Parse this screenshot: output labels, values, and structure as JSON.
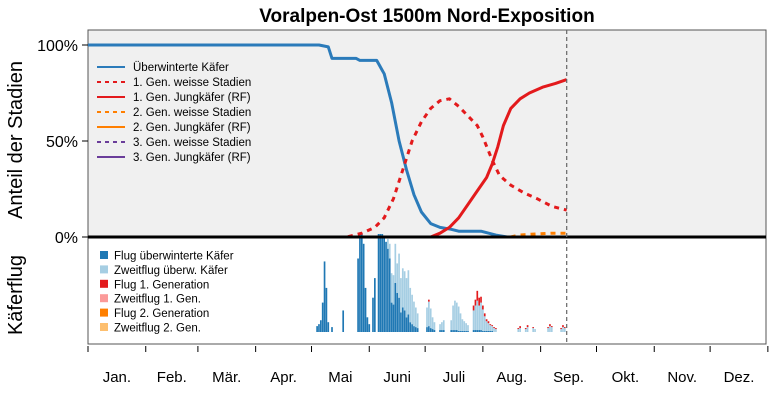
{
  "colors": {
    "panel_bg": "#f0f0f0",
    "overwintered": "#2b7bba",
    "gen1_white": "#e31a1c",
    "gen1_young": "#e31a1c",
    "gen2_white": "#ff7f00",
    "gen2_young": "#ff7f00",
    "gen3_white": "#6a3d9a",
    "gen3_young": "#6a3d9a",
    "flight_overwintered": "#1f78b4",
    "reflight_overwintered": "#a6cee3",
    "flight_gen1": "#e31a1c",
    "reflight_gen1": "#fb9a99",
    "flight_gen2": "#ff7f00",
    "reflight_gen2": "#fdbf6f"
  },
  "chart_data": {
    "type": "line",
    "title": "Voralpen-Ost 1500m Nord-Exposition",
    "ylabel_top": "Anteil der Stadien",
    "ylabel_bottom": "Käferflug",
    "yticks": [
      "100%",
      "50%",
      "0%"
    ],
    "months": [
      "Jan.",
      "Feb.",
      "Mär.",
      "Apr.",
      "Mai",
      "Juni",
      "Juli",
      "Aug.",
      "Sep.",
      "Okt.",
      "Nov.",
      "Dez."
    ],
    "x_unit": "day of year",
    "xlim": [
      1,
      365
    ],
    "ylim": [
      0,
      1.05
    ],
    "current_day": 258,
    "series": [
      {
        "name": "Überwinterte Käfer",
        "style": "solid",
        "color": "#2b7bba",
        "points": [
          [
            1,
            1.0
          ],
          [
            125,
            1.0
          ],
          [
            130,
            0.99
          ],
          [
            132,
            0.93
          ],
          [
            145,
            0.93
          ],
          [
            147,
            0.92
          ],
          [
            156,
            0.92
          ],
          [
            160,
            0.85
          ],
          [
            164,
            0.7
          ],
          [
            168,
            0.5
          ],
          [
            172,
            0.35
          ],
          [
            176,
            0.22
          ],
          [
            180,
            0.13
          ],
          [
            185,
            0.07
          ],
          [
            190,
            0.05
          ],
          [
            196,
            0.04
          ],
          [
            200,
            0.03
          ],
          [
            212,
            0.03
          ],
          [
            220,
            0.01
          ],
          [
            226,
            0.0
          ],
          [
            258,
            0.0
          ]
        ]
      },
      {
        "name": "1. Gen. weisse Stadien",
        "style": "dotted",
        "color": "#e31a1c",
        "points": [
          [
            1,
            0.0
          ],
          [
            140,
            0.0
          ],
          [
            148,
            0.02
          ],
          [
            155,
            0.05
          ],
          [
            160,
            0.1
          ],
          [
            165,
            0.2
          ],
          [
            170,
            0.35
          ],
          [
            175,
            0.5
          ],
          [
            180,
            0.6
          ],
          [
            185,
            0.67
          ],
          [
            190,
            0.71
          ],
          [
            195,
            0.72
          ],
          [
            200,
            0.68
          ],
          [
            205,
            0.63
          ],
          [
            210,
            0.58
          ],
          [
            213,
            0.52
          ],
          [
            218,
            0.4
          ],
          [
            222,
            0.32
          ],
          [
            228,
            0.27
          ],
          [
            235,
            0.23
          ],
          [
            242,
            0.2
          ],
          [
            250,
            0.16
          ],
          [
            258,
            0.14
          ]
        ]
      },
      {
        "name": "1. Gen. Jungkäfer (RF)",
        "style": "solid",
        "color": "#e31a1c",
        "points": [
          [
            1,
            0.0
          ],
          [
            185,
            0.0
          ],
          [
            190,
            0.02
          ],
          [
            195,
            0.05
          ],
          [
            200,
            0.1
          ],
          [
            205,
            0.17
          ],
          [
            210,
            0.24
          ],
          [
            215,
            0.31
          ],
          [
            218,
            0.38
          ],
          [
            221,
            0.47
          ],
          [
            224,
            0.58
          ],
          [
            228,
            0.67
          ],
          [
            233,
            0.72
          ],
          [
            238,
            0.75
          ],
          [
            245,
            0.78
          ],
          [
            252,
            0.8
          ],
          [
            258,
            0.82
          ]
        ]
      },
      {
        "name": "2. Gen. weisse Stadien",
        "style": "dotted",
        "color": "#ff7f00",
        "points": [
          [
            228,
            0.0
          ],
          [
            232,
            0.01
          ],
          [
            240,
            0.015
          ],
          [
            250,
            0.02
          ],
          [
            258,
            0.02
          ]
        ]
      },
      {
        "name": "2. Gen. Jungkäfer (RF)",
        "style": "solid",
        "color": "#ff7f00",
        "points": []
      },
      {
        "name": "3. Gen. weisse Stadien",
        "style": "dotted",
        "color": "#6a3d9a",
        "points": []
      },
      {
        "name": "3. Gen. Jungkäfer (RF)",
        "style": "solid",
        "color": "#6a3d9a",
        "points": []
      }
    ],
    "flight_legend": [
      {
        "name": "Flug überwinterte Käfer",
        "color": "#1f78b4"
      },
      {
        "name": "Zweitflug überw. Käfer",
        "color": "#a6cee3"
      },
      {
        "name": "Flug 1. Generation",
        "color": "#e31a1c"
      },
      {
        "name": "Zweitflug 1. Gen.",
        "color": "#fb9a99"
      },
      {
        "name": "Flug 2. Generation",
        "color": "#ff7f00"
      },
      {
        "name": "Zweitflug 2. Gen.",
        "color": "#fdbf6f"
      }
    ],
    "flight_bars": [
      [
        124,
        0.06,
        0,
        0
      ],
      [
        125,
        0.08,
        0,
        0
      ],
      [
        126,
        0.12,
        0,
        0
      ],
      [
        127,
        0.3,
        0,
        0
      ],
      [
        128,
        0.72,
        0,
        0
      ],
      [
        129,
        0.45,
        0,
        0
      ],
      [
        130,
        0.1,
        0,
        0
      ],
      [
        132,
        0.05,
        0,
        0
      ],
      [
        138,
        0.22,
        0,
        0
      ],
      [
        146,
        0.75,
        0,
        0
      ],
      [
        147,
        1.0,
        0,
        0
      ],
      [
        148,
        1.0,
        0,
        0
      ],
      [
        149,
        0.9,
        0,
        0
      ],
      [
        150,
        0.45,
        0,
        0
      ],
      [
        151,
        0.15,
        0,
        0
      ],
      [
        152,
        0.08,
        0,
        0
      ],
      [
        154,
        0.35,
        0,
        0
      ],
      [
        155,
        0.55,
        0,
        0
      ],
      [
        157,
        1.0,
        0,
        0
      ],
      [
        158,
        1.0,
        0,
        0
      ],
      [
        159,
        1.0,
        0,
        0
      ],
      [
        160,
        0.98,
        0,
        0
      ],
      [
        161,
        0.92,
        0,
        0
      ],
      [
        162,
        0.85,
        0.1,
        0
      ],
      [
        163,
        0.75,
        0.15,
        0
      ],
      [
        164,
        0.3,
        0.3,
        0
      ],
      [
        165,
        0.28,
        0.3,
        0
      ],
      [
        166,
        0.5,
        0.4,
        0
      ],
      [
        167,
        0.4,
        0.3,
        0
      ],
      [
        168,
        0.35,
        0.45,
        0
      ],
      [
        169,
        0.2,
        0.35,
        0
      ],
      [
        170,
        0.25,
        0.4,
        0
      ],
      [
        171,
        0.22,
        0.4,
        0
      ],
      [
        172,
        0.15,
        0.4,
        0
      ],
      [
        173,
        0.18,
        0.45,
        0
      ],
      [
        174,
        0.1,
        0.35,
        0
      ],
      [
        175,
        0.08,
        0.3,
        0
      ],
      [
        176,
        0.06,
        0.25,
        0
      ],
      [
        177,
        0.05,
        0.2,
        0
      ],
      [
        178,
        0.04,
        0.15,
        0
      ],
      [
        183,
        0.05,
        0.2,
        0
      ],
      [
        184,
        0.06,
        0.25,
        0.02
      ],
      [
        185,
        0.04,
        0.2,
        0
      ],
      [
        186,
        0.03,
        0.12,
        0
      ],
      [
        187,
        0.02,
        0.08,
        0
      ],
      [
        190,
        0.02,
        0.06,
        0
      ],
      [
        191,
        0.02,
        0.08,
        0
      ],
      [
        192,
        0.02,
        0.1,
        0
      ],
      [
        196,
        0.02,
        0.1,
        0
      ],
      [
        197,
        0.02,
        0.25,
        0
      ],
      [
        198,
        0.02,
        0.3,
        0
      ],
      [
        199,
        0.02,
        0.28,
        0
      ],
      [
        200,
        0.01,
        0.25,
        0
      ],
      [
        201,
        0.01,
        0.18,
        0
      ],
      [
        202,
        0.01,
        0.12,
        0
      ],
      [
        203,
        0.01,
        0.1,
        0
      ],
      [
        204,
        0.01,
        0.08,
        0
      ],
      [
        205,
        0.01,
        0.06,
        0
      ],
      [
        208,
        0.02,
        0.2,
        0.05
      ],
      [
        209,
        0.02,
        0.25,
        0.06
      ],
      [
        210,
        0.02,
        0.3,
        0.1
      ],
      [
        211,
        0.02,
        0.25,
        0.08
      ],
      [
        212,
        0.02,
        0.28,
        0.06
      ],
      [
        213,
        0.01,
        0.22,
        0.04
      ],
      [
        214,
        0.01,
        0.15,
        0.03
      ],
      [
        215,
        0.01,
        0.1,
        0.02
      ],
      [
        216,
        0.01,
        0.08,
        0.02
      ],
      [
        217,
        0.01,
        0.06,
        0.01
      ],
      [
        218,
        0.01,
        0.05,
        0.01
      ],
      [
        219,
        0.0,
        0.04,
        0.01
      ],
      [
        220,
        0.0,
        0.03,
        0.01
      ],
      [
        232,
        0.0,
        0.03,
        0.01
      ],
      [
        233,
        0.0,
        0.04,
        0.02
      ],
      [
        236,
        0.0,
        0.03,
        0.01
      ],
      [
        237,
        0.0,
        0.05,
        0.02
      ],
      [
        240,
        0.0,
        0.04,
        0.01
      ],
      [
        241,
        0.0,
        0.03,
        0.0
      ],
      [
        248,
        0.0,
        0.04,
        0.01
      ],
      [
        249,
        0.0,
        0.06,
        0.02
      ],
      [
        250,
        0.0,
        0.05,
        0.01
      ],
      [
        255,
        0.0,
        0.03,
        0.01
      ],
      [
        256,
        0.0,
        0.05,
        0.02
      ],
      [
        257,
        0.0,
        0.04,
        0.01
      ]
    ]
  }
}
